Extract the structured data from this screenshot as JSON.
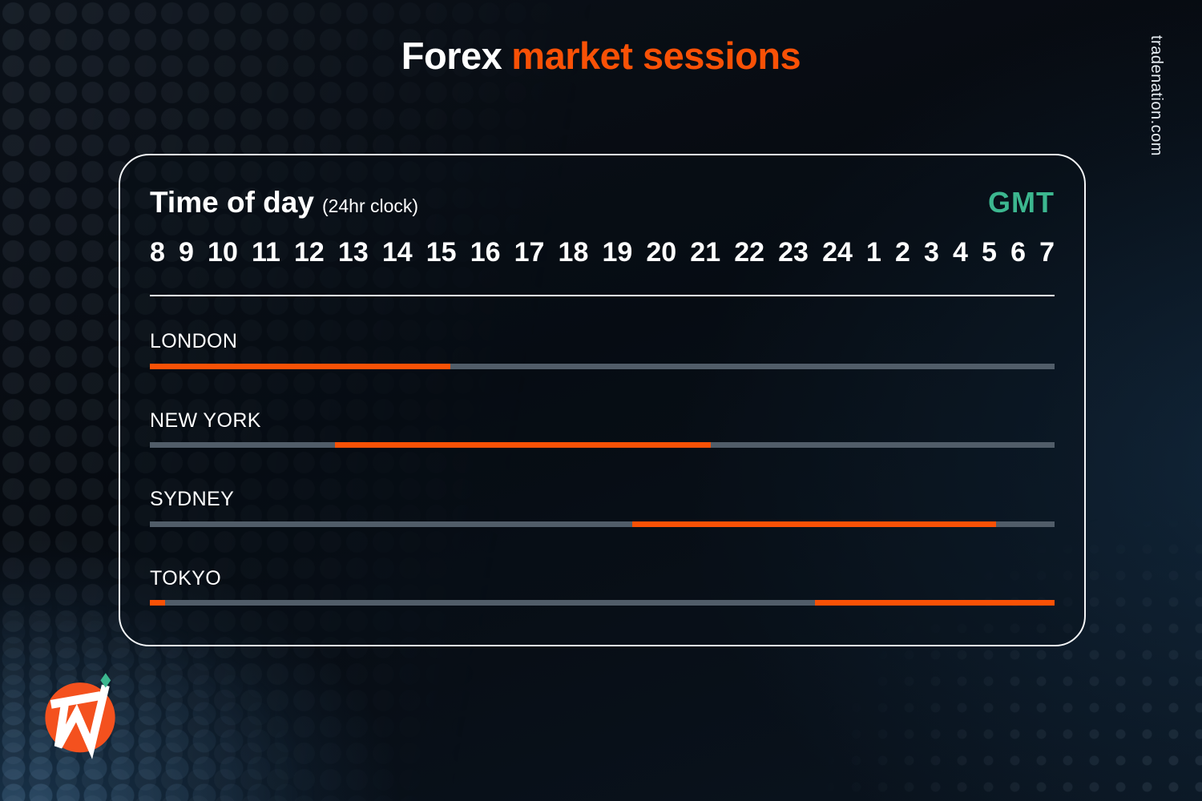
{
  "page": {
    "title_white": "Forex",
    "title_accent": "market sessions",
    "watermark": "tradenation.com"
  },
  "colors": {
    "accent_orange": "#F95106",
    "logo_orange": "#F4511E",
    "teal_green": "#3CB78F",
    "track_gray": "#515D69",
    "background_navy": "#070C12",
    "card_border": "#F4F6F8"
  },
  "card": {
    "axis_title": "Time of day",
    "axis_subtitle": "(24hr clock)",
    "timezone_label": "GMT"
  },
  "logo": {
    "name": "trade-nation-logo",
    "monogram": "TN"
  },
  "chart_data": {
    "type": "timeline",
    "title": "Forex market sessions",
    "xlabel": "Time of day (24hr clock)",
    "timezone": "GMT",
    "hour_labels": [
      "8",
      "9",
      "10",
      "11",
      "12",
      "13",
      "14",
      "15",
      "16",
      "17",
      "18",
      "19",
      "20",
      "21",
      "22",
      "23",
      "24",
      "1",
      "2",
      "3",
      "4",
      "5",
      "6",
      "7"
    ],
    "axis_range_hours": [
      8,
      32
    ],
    "legend_position": "none",
    "grid": false,
    "sessions": [
      {
        "market": "LONDON",
        "open_gmt": "08:00",
        "close_gmt": "16:00",
        "segments_pct": [
          [
            0,
            33.2
          ]
        ]
      },
      {
        "market": "NEW YORK",
        "open_gmt": "13:00",
        "close_gmt": "22:00",
        "segments_pct": [
          [
            20.5,
            62.0
          ]
        ]
      },
      {
        "market": "SYDNEY",
        "open_gmt": "20:00",
        "close_gmt": "06:00",
        "segments_pct": [
          [
            53.3,
            93.5
          ]
        ]
      },
      {
        "market": "TOKYO",
        "open_gmt": "00:00",
        "close_gmt": "09:00",
        "segments_pct": [
          [
            0,
            1.7
          ],
          [
            73.5,
            100
          ]
        ]
      }
    ]
  }
}
